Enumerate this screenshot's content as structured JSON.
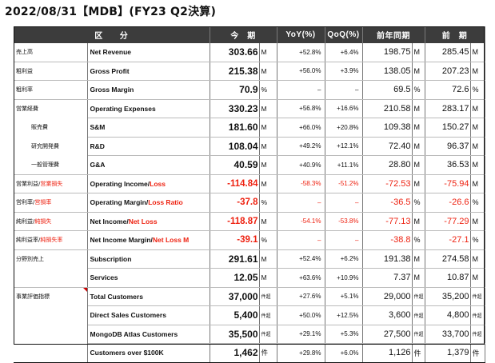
{
  "title": "2022/08/31【MDB】(FY23 Q2決算)",
  "headers": {
    "category": "区　　分",
    "current": "今　期",
    "yoy": "YoY(%)",
    "qoq": "QoQ(%)",
    "prior_year": "前年同期",
    "prior_quarter": "前　期"
  },
  "rows": [
    {
      "jp": "売上高",
      "jp_red": "",
      "en": "Net Revenue",
      "en_red": "",
      "cur": "303.66",
      "cur_unit": "M",
      "yoy": "+52.8%",
      "qoq": "+6.4%",
      "py": "198.75",
      "py_unit": "M",
      "pq": "285.45",
      "pq_unit": "M"
    },
    {
      "jp": "粗利益",
      "jp_red": "",
      "en": "Gross Profit",
      "en_red": "",
      "cur": "215.38",
      "cur_unit": "M",
      "yoy": "+56.0%",
      "qoq": "+3.9%",
      "py": "138.05",
      "py_unit": "M",
      "pq": "207.23",
      "pq_unit": "M"
    },
    {
      "jp": "粗利率",
      "jp_red": "",
      "en": "Gross Margin",
      "en_red": "",
      "cur": "70.9",
      "cur_unit": "%",
      "yoy": "–",
      "qoq": "–",
      "py": "69.5",
      "py_unit": "%",
      "pq": "72.6",
      "pq_unit": "%"
    },
    {
      "jp": "営業経費",
      "jp_red": "",
      "en": "Operating Expenses",
      "en_red": "",
      "cur": "330.23",
      "cur_unit": "M",
      "yoy": "+56.8%",
      "qoq": "+16.6%",
      "py": "210.58",
      "py_unit": "M",
      "pq": "283.17",
      "pq_unit": "M"
    },
    {
      "jp": "販売費",
      "jp_red": "",
      "en": "S&M",
      "en_red": "",
      "cur": "181.60",
      "cur_unit": "M",
      "yoy": "+66.0%",
      "qoq": "+20.8%",
      "py": "109.38",
      "py_unit": "M",
      "pq": "150.27",
      "pq_unit": "M"
    },
    {
      "jp": "研究開発費",
      "jp_red": "",
      "en": "R&D",
      "en_red": "",
      "cur": "108.04",
      "cur_unit": "M",
      "yoy": "+49.2%",
      "qoq": "+12.1%",
      "py": "72.40",
      "py_unit": "M",
      "pq": "96.37",
      "pq_unit": "M"
    },
    {
      "jp": "一般管理費",
      "jp_red": "",
      "en": "G&A",
      "en_red": "",
      "cur": "40.59",
      "cur_unit": "M",
      "yoy": "+40.9%",
      "qoq": "+11.1%",
      "py": "28.80",
      "py_unit": "M",
      "pq": "36.53",
      "pq_unit": "M"
    },
    {
      "jp": "営業利益/",
      "jp_red": "営業損失",
      "en": "Operating Income/",
      "en_red": "Loss",
      "cur": "-114.84",
      "cur_unit": "M",
      "yoy": "-58.3%",
      "qoq": "-51.2%",
      "py": "-72.53",
      "py_unit": "M",
      "pq": "-75.94",
      "pq_unit": "M"
    },
    {
      "jp": "営利率/",
      "jp_red": "営損率",
      "en": "Operating Margin/",
      "en_red": "Loss Ratio",
      "cur": "-37.8",
      "cur_unit": "%",
      "yoy": "–",
      "qoq": "–",
      "py": "-36.5",
      "py_unit": "%",
      "pq": "-26.6",
      "pq_unit": "%"
    },
    {
      "jp": "純利益/",
      "jp_red": "純損失",
      "en": "Net Income/",
      "en_red": "Net Loss",
      "cur": "-118.87",
      "cur_unit": "M",
      "yoy": "-54.1%",
      "qoq": "-53.8%",
      "py": "-77.13",
      "py_unit": "M",
      "pq": "-77.29",
      "pq_unit": "M"
    },
    {
      "jp": "純利益率/",
      "jp_red": "純損失率",
      "en": "Net Income Margin/",
      "en_red": "Net Loss M",
      "cur": "-39.1",
      "cur_unit": "%",
      "yoy": "–",
      "qoq": "–",
      "py": "-38.8",
      "py_unit": "%",
      "pq": "-27.1",
      "pq_unit": "%"
    },
    {
      "jp": "分野別売上",
      "jp_red": "",
      "en": "Subscription",
      "en_red": "",
      "cur": "291.61",
      "cur_unit": "M",
      "yoy": "+52.4%",
      "qoq": "+6.2%",
      "py": "191.38",
      "py_unit": "M",
      "pq": "274.58",
      "pq_unit": "M"
    },
    {
      "jp": "",
      "jp_red": "",
      "en": "Services",
      "en_red": "",
      "cur": "12.05",
      "cur_unit": "M",
      "yoy": "+63.6%",
      "qoq": "+10.9%",
      "py": "7.37",
      "py_unit": "M",
      "pq": "10.87",
      "pq_unit": "M"
    },
    {
      "jp": "事業評価指標",
      "jp_red": "",
      "en": "Total Customers",
      "en_red": "",
      "cur": "37,000",
      "cur_unit": "件超",
      "yoy": "+27.6%",
      "qoq": "+5.1%",
      "py": "29,000",
      "py_unit": "件超",
      "pq": "35,200",
      "pq_unit": "件超"
    },
    {
      "jp": "",
      "jp_red": "",
      "en": "Direct Sales Customers",
      "en_red": "",
      "cur": "5,400",
      "cur_unit": "件超",
      "yoy": "+50.0%",
      "qoq": "+12.5%",
      "py": "3,600",
      "py_unit": "件超",
      "pq": "4,800",
      "pq_unit": "件超"
    },
    {
      "jp": "",
      "jp_red": "",
      "en": "MongoDB Atlas Customers",
      "en_red": "",
      "cur": "35,500",
      "cur_unit": "件超",
      "yoy": "+29.1%",
      "qoq": "+5.3%",
      "py": "27,500",
      "py_unit": "件超",
      "pq": "33,700",
      "pq_unit": "件超"
    },
    {
      "jp": "",
      "jp_red": "",
      "en": "Customers over $100K",
      "en_red": "",
      "cur": "1,462",
      "cur_unit": "件",
      "yoy": "+29.8%",
      "qoq": "+6.0%",
      "py": "1,126",
      "py_unit": "件",
      "pq": "1,379",
      "pq_unit": "件"
    }
  ]
}
